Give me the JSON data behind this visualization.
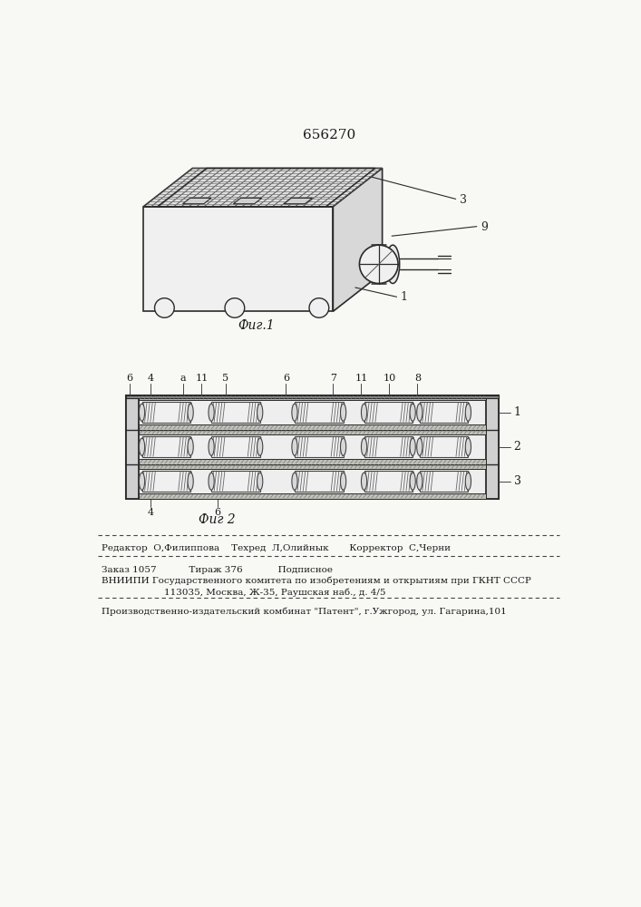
{
  "patent_number": "656270",
  "fig1_caption": "Фиг.1",
  "fig2_caption": "Фиг 2",
  "footer_line1": "Редактор  О,Филиппова    Техред  Л,Олийнык       Корректор  С,Черни",
  "footer_line2": "Заказ 1057           Тираж 376            Подписное",
  "footer_line3": "ВНИИПИ Государственного комитета по изобретениям и открытиям при ГКНТ СССР",
  "footer_line4": "113035, Москва, Ж-35, Раушская наб., д. 4/5",
  "footer_line5": "Производственно-издательский комбинат \"Патент\", г.Ужгород, ул. Гагарина,101",
  "bg_color": "#f8f8f5",
  "text_color": "#1a1a1a",
  "line_color": "#2a2a2a"
}
